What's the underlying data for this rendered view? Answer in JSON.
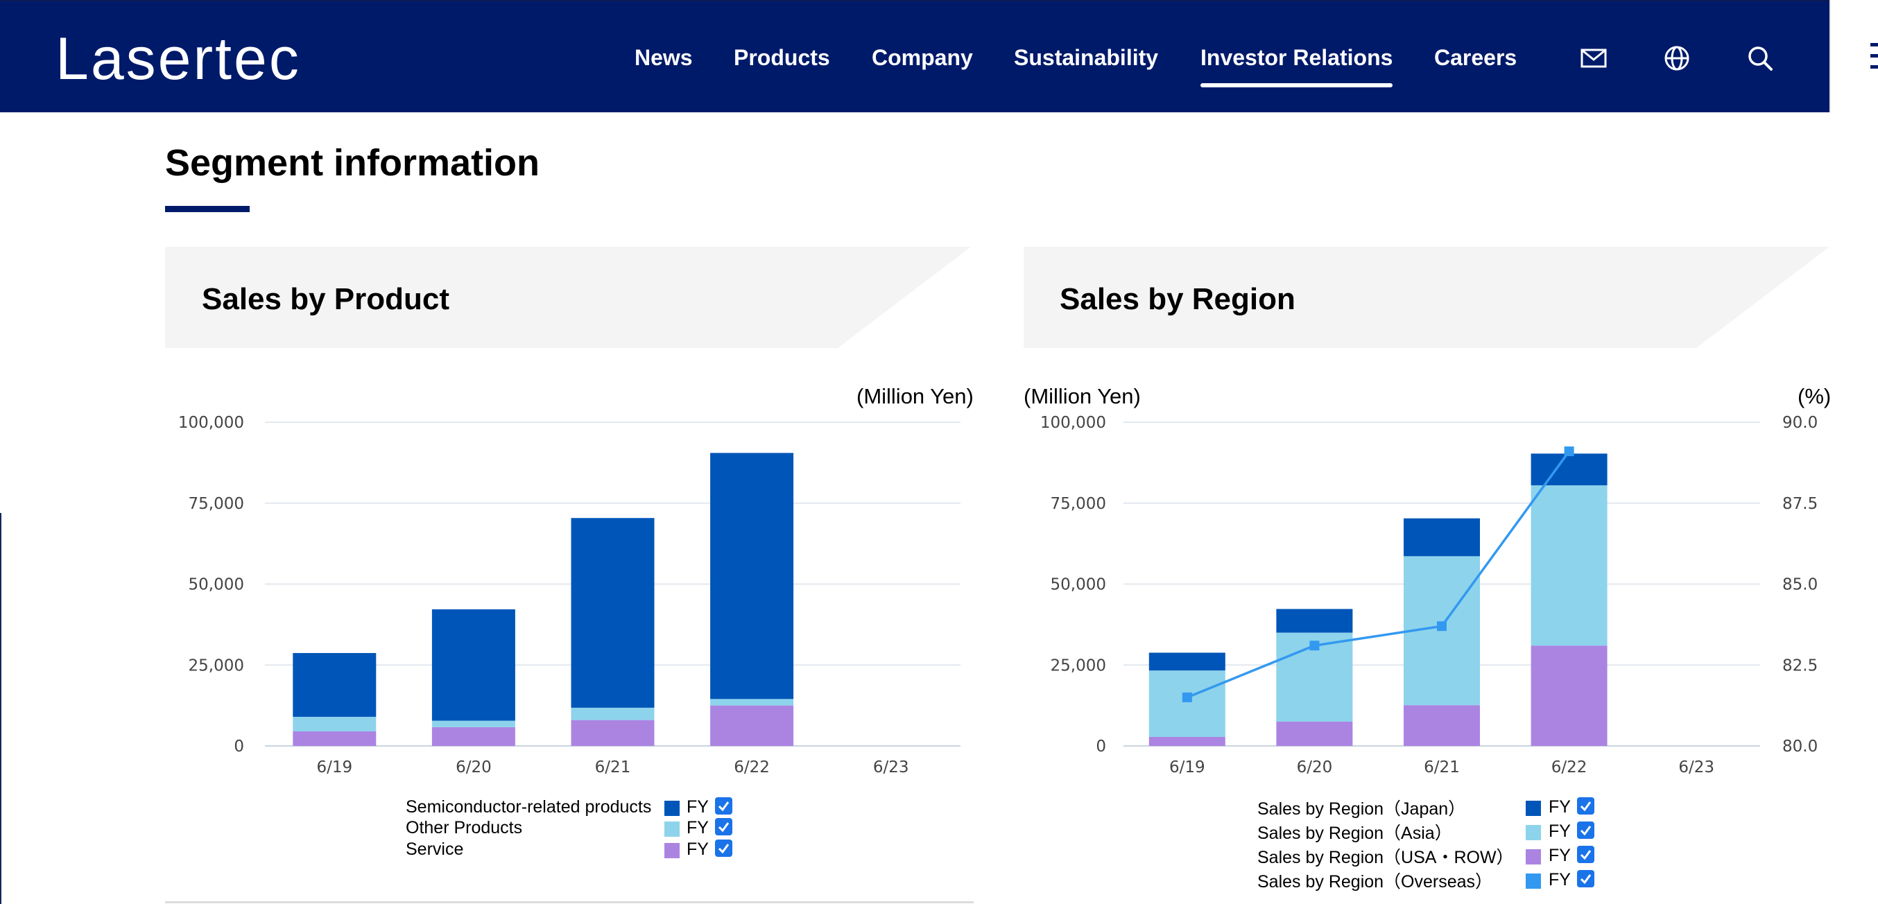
{
  "header": {
    "logo": "Lasertec",
    "nav": [
      "News",
      "Products",
      "Company",
      "Sustainability",
      "Investor Relations",
      "Careers"
    ],
    "active_nav": "Investor Relations",
    "icons": [
      "mail-icon",
      "globe-icon",
      "search-icon",
      "menu-icon"
    ]
  },
  "page": {
    "title": "Segment information"
  },
  "colors": {
    "header_bg": "#001a6a",
    "semiconductor": "#0055b8",
    "other": "#8dd3ec",
    "service": "#ab84e2",
    "overseas_line": "#3399f0"
  },
  "product_panel": {
    "title": "Sales by Product",
    "unit": "(Million Yen)",
    "legend": [
      {
        "label": "Semiconductor-related products",
        "fy": "FY",
        "color": "#0055b8",
        "checked": true
      },
      {
        "label": "Other Products",
        "fy": "FY",
        "color": "#8dd3ec",
        "checked": true
      },
      {
        "label": "Service",
        "fy": "FY",
        "color": "#ab84e2",
        "checked": true
      }
    ]
  },
  "region_panel": {
    "title": "Sales by Region",
    "unit_left": "(Million Yen)",
    "unit_right": "(%)",
    "legend": [
      {
        "label": "Sales by Region（Japan）",
        "fy": "FY",
        "color": "#0055b8",
        "checked": true
      },
      {
        "label": "Sales by Region（Asia）",
        "fy": "FY",
        "color": "#8dd3ec",
        "checked": true
      },
      {
        "label": "Sales by Region（USA・ROW）",
        "fy": "FY",
        "color": "#ab84e2",
        "checked": true
      },
      {
        "label": "Sales by Region（Overseas）",
        "fy": "FY",
        "color": "#3399f0",
        "checked": true
      }
    ]
  },
  "chart_data": [
    {
      "type": "bar",
      "stacked": true,
      "categories": [
        "6/19",
        "6/20",
        "6/21",
        "6/22",
        "6/23"
      ],
      "ylim": [
        0,
        100000
      ],
      "yticks": [
        "0",
        "25,000",
        "50,000",
        "75,000",
        "100,000"
      ],
      "grid": true,
      "legend_position": "bottom",
      "series": [
        {
          "name": "Service",
          "color": "#ab84e2",
          "values": [
            4500,
            5800,
            8000,
            12500,
            null
          ]
        },
        {
          "name": "Other Products",
          "color": "#8dd3ec",
          "values": [
            4500,
            2000,
            3800,
            2000,
            null
          ]
        },
        {
          "name": "Semiconductor-related products",
          "color": "#0055b8",
          "values": [
            19700,
            34400,
            58600,
            76000,
            null
          ]
        }
      ]
    },
    {
      "type": "bar",
      "stacked": true,
      "categories": [
        "6/19",
        "6/20",
        "6/21",
        "6/22",
        "6/23"
      ],
      "ylim": [
        0,
        100000
      ],
      "yticks": [
        "0",
        "25,000",
        "50,000",
        "75,000",
        "100,000"
      ],
      "y2lim": [
        80,
        90
      ],
      "y2ticks": [
        "80.0",
        "82.5",
        "85.0",
        "87.5",
        "90.0"
      ],
      "grid": true,
      "legend_position": "bottom",
      "series": [
        {
          "name": "Sales by Region（USA・ROW）",
          "color": "#ab84e2",
          "values": [
            2800,
            7500,
            12600,
            31000,
            null
          ]
        },
        {
          "name": "Sales by Region（Asia）",
          "color": "#8dd3ec",
          "values": [
            20500,
            27500,
            46000,
            49500,
            null
          ]
        },
        {
          "name": "Sales by Region（Japan）",
          "color": "#0055b8",
          "values": [
            5500,
            7300,
            11700,
            9800,
            null
          ]
        }
      ],
      "line_series": [
        {
          "name": "Sales by Region（Overseas）",
          "color": "#3399f0",
          "axis": "right",
          "values": [
            81.5,
            83.1,
            83.7,
            89.1,
            null
          ]
        }
      ]
    }
  ]
}
